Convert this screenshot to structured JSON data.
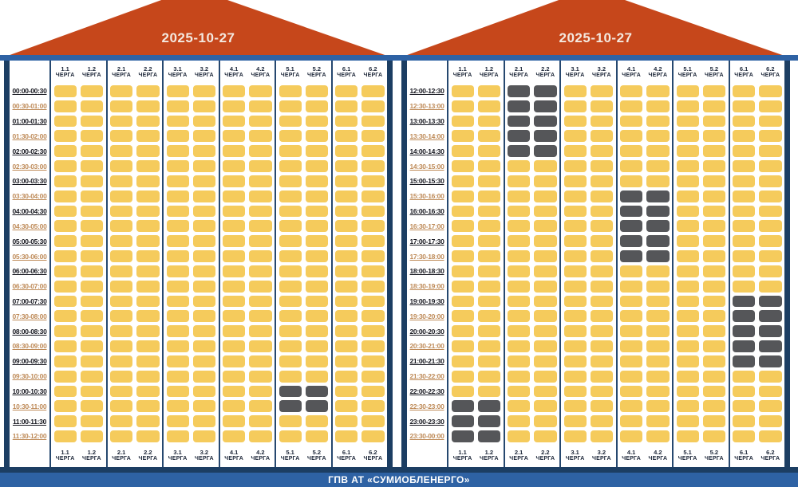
{
  "board": {
    "footer_title": "ГПВ АТ «СУМИОБЛЕНЕРГО»",
    "queue_word": "ЧЕРГА",
    "queues": [
      "1.1",
      "1.2",
      "2.1",
      "2.2",
      "3.1",
      "3.2",
      "4.1",
      "4.2",
      "5.1",
      "5.2",
      "6.1",
      "6.2"
    ],
    "colors": {
      "roof_red": "#C6471B",
      "strip_blue": "#2E62A4",
      "border_navy": "#1C3E63",
      "cell_on_yellow": "#F5CB5C",
      "cell_off_gray": "#555659",
      "time_label_dark": "#15161E",
      "time_label_orange": "#BE8A57"
    },
    "cell_states": {
      "1": "on",
      "0": "off"
    }
  },
  "chart_data": [
    {
      "type": "heatmap",
      "title": "2025-10-27",
      "panel_range": "00:00-12:00",
      "x_categories": [
        "1.1",
        "1.2",
        "2.1",
        "2.2",
        "3.1",
        "3.2",
        "4.1",
        "4.2",
        "5.1",
        "5.2",
        "6.1",
        "6.2"
      ],
      "y_categories": [
        "00:00-00:30",
        "00:30-01:00",
        "01:00-01:30",
        "01:30-02:00",
        "02:00-02:30",
        "02:30-03:00",
        "03:00-03:30",
        "03:30-04:00",
        "04:00-04:30",
        "04:30-05:00",
        "05:00-05:30",
        "05:30-06:00",
        "06:00-06:30",
        "06:30-07:00",
        "07:00-07:30",
        "07:30-08:00",
        "08:00-08:30",
        "08:30-09:00",
        "09:00-09:30",
        "09:30-10:00",
        "10:00-10:30",
        "10:30-11:00",
        "11:00-11:30",
        "11:30-12:00"
      ],
      "values": [
        [
          1,
          1,
          1,
          1,
          1,
          1,
          1,
          1,
          1,
          1,
          1,
          1
        ],
        [
          1,
          1,
          1,
          1,
          1,
          1,
          1,
          1,
          1,
          1,
          1,
          1
        ],
        [
          1,
          1,
          1,
          1,
          1,
          1,
          1,
          1,
          1,
          1,
          1,
          1
        ],
        [
          1,
          1,
          1,
          1,
          1,
          1,
          1,
          1,
          1,
          1,
          1,
          1
        ],
        [
          1,
          1,
          1,
          1,
          1,
          1,
          1,
          1,
          1,
          1,
          1,
          1
        ],
        [
          1,
          1,
          1,
          1,
          1,
          1,
          1,
          1,
          1,
          1,
          1,
          1
        ],
        [
          1,
          1,
          1,
          1,
          1,
          1,
          1,
          1,
          1,
          1,
          1,
          1
        ],
        [
          1,
          1,
          1,
          1,
          1,
          1,
          1,
          1,
          1,
          1,
          1,
          1
        ],
        [
          1,
          1,
          1,
          1,
          1,
          1,
          1,
          1,
          1,
          1,
          1,
          1
        ],
        [
          1,
          1,
          1,
          1,
          1,
          1,
          1,
          1,
          1,
          1,
          1,
          1
        ],
        [
          1,
          1,
          1,
          1,
          1,
          1,
          1,
          1,
          1,
          1,
          1,
          1
        ],
        [
          1,
          1,
          1,
          1,
          1,
          1,
          1,
          1,
          1,
          1,
          1,
          1
        ],
        [
          1,
          1,
          1,
          1,
          1,
          1,
          1,
          1,
          1,
          1,
          1,
          1
        ],
        [
          1,
          1,
          1,
          1,
          1,
          1,
          1,
          1,
          1,
          1,
          1,
          1
        ],
        [
          1,
          1,
          1,
          1,
          1,
          1,
          1,
          1,
          1,
          1,
          1,
          1
        ],
        [
          1,
          1,
          1,
          1,
          1,
          1,
          1,
          1,
          1,
          1,
          1,
          1
        ],
        [
          1,
          1,
          1,
          1,
          1,
          1,
          1,
          1,
          1,
          1,
          1,
          1
        ],
        [
          1,
          1,
          1,
          1,
          1,
          1,
          1,
          1,
          1,
          1,
          1,
          1
        ],
        [
          1,
          1,
          1,
          1,
          1,
          1,
          1,
          1,
          1,
          1,
          1,
          1
        ],
        [
          1,
          1,
          1,
          1,
          1,
          1,
          1,
          1,
          1,
          1,
          1,
          1
        ],
        [
          1,
          1,
          1,
          1,
          1,
          1,
          1,
          1,
          0,
          0,
          1,
          1
        ],
        [
          1,
          1,
          1,
          1,
          1,
          1,
          1,
          1,
          0,
          0,
          1,
          1
        ],
        [
          1,
          1,
          1,
          1,
          1,
          1,
          1,
          1,
          1,
          1,
          1,
          1
        ],
        [
          1,
          1,
          1,
          1,
          1,
          1,
          1,
          1,
          1,
          1,
          1,
          1
        ]
      ]
    },
    {
      "type": "heatmap",
      "title": "2025-10-27",
      "panel_range": "12:00-24:00",
      "x_categories": [
        "1.1",
        "1.2",
        "2.1",
        "2.2",
        "3.1",
        "3.2",
        "4.1",
        "4.2",
        "5.1",
        "5.2",
        "6.1",
        "6.2"
      ],
      "y_categories": [
        "12:00-12:30",
        "12:30-13:00",
        "13:00-13:30",
        "13:30-14:00",
        "14:00-14:30",
        "14:30-15:00",
        "15:00-15:30",
        "15:30-16:00",
        "16:00-16:30",
        "16:30-17:00",
        "17:00-17:30",
        "17:30-18:00",
        "18:00-18:30",
        "18:30-19:00",
        "19:00-19:30",
        "19:30-20:00",
        "20:00-20:30",
        "20:30-21:00",
        "21:00-21:30",
        "21:30-22:00",
        "22:00-22:30",
        "22:30-23:00",
        "23:00-23:30",
        "23:30-00:00"
      ],
      "values": [
        [
          1,
          1,
          0,
          0,
          1,
          1,
          1,
          1,
          1,
          1,
          1,
          1
        ],
        [
          1,
          1,
          0,
          0,
          1,
          1,
          1,
          1,
          1,
          1,
          1,
          1
        ],
        [
          1,
          1,
          0,
          0,
          1,
          1,
          1,
          1,
          1,
          1,
          1,
          1
        ],
        [
          1,
          1,
          0,
          0,
          1,
          1,
          1,
          1,
          1,
          1,
          1,
          1
        ],
        [
          1,
          1,
          0,
          0,
          1,
          1,
          1,
          1,
          1,
          1,
          1,
          1
        ],
        [
          1,
          1,
          1,
          1,
          1,
          1,
          1,
          1,
          1,
          1,
          1,
          1
        ],
        [
          1,
          1,
          1,
          1,
          1,
          1,
          1,
          1,
          1,
          1,
          1,
          1
        ],
        [
          1,
          1,
          1,
          1,
          1,
          1,
          0,
          0,
          1,
          1,
          1,
          1
        ],
        [
          1,
          1,
          1,
          1,
          1,
          1,
          0,
          0,
          1,
          1,
          1,
          1
        ],
        [
          1,
          1,
          1,
          1,
          1,
          1,
          0,
          0,
          1,
          1,
          1,
          1
        ],
        [
          1,
          1,
          1,
          1,
          1,
          1,
          0,
          0,
          1,
          1,
          1,
          1
        ],
        [
          1,
          1,
          1,
          1,
          1,
          1,
          0,
          0,
          1,
          1,
          1,
          1
        ],
        [
          1,
          1,
          1,
          1,
          1,
          1,
          1,
          1,
          1,
          1,
          1,
          1
        ],
        [
          1,
          1,
          1,
          1,
          1,
          1,
          1,
          1,
          1,
          1,
          1,
          1
        ],
        [
          1,
          1,
          1,
          1,
          1,
          1,
          1,
          1,
          1,
          1,
          0,
          0
        ],
        [
          1,
          1,
          1,
          1,
          1,
          1,
          1,
          1,
          1,
          1,
          0,
          0
        ],
        [
          1,
          1,
          1,
          1,
          1,
          1,
          1,
          1,
          1,
          1,
          0,
          0
        ],
        [
          1,
          1,
          1,
          1,
          1,
          1,
          1,
          1,
          1,
          1,
          0,
          0
        ],
        [
          1,
          1,
          1,
          1,
          1,
          1,
          1,
          1,
          1,
          1,
          0,
          0
        ],
        [
          1,
          1,
          1,
          1,
          1,
          1,
          1,
          1,
          1,
          1,
          1,
          1
        ],
        [
          1,
          1,
          1,
          1,
          1,
          1,
          1,
          1,
          1,
          1,
          1,
          1
        ],
        [
          0,
          0,
          1,
          1,
          1,
          1,
          1,
          1,
          1,
          1,
          1,
          1
        ],
        [
          0,
          0,
          1,
          1,
          1,
          1,
          1,
          1,
          1,
          1,
          1,
          1
        ],
        [
          0,
          0,
          1,
          1,
          1,
          1,
          1,
          1,
          1,
          1,
          1,
          1
        ]
      ]
    }
  ]
}
